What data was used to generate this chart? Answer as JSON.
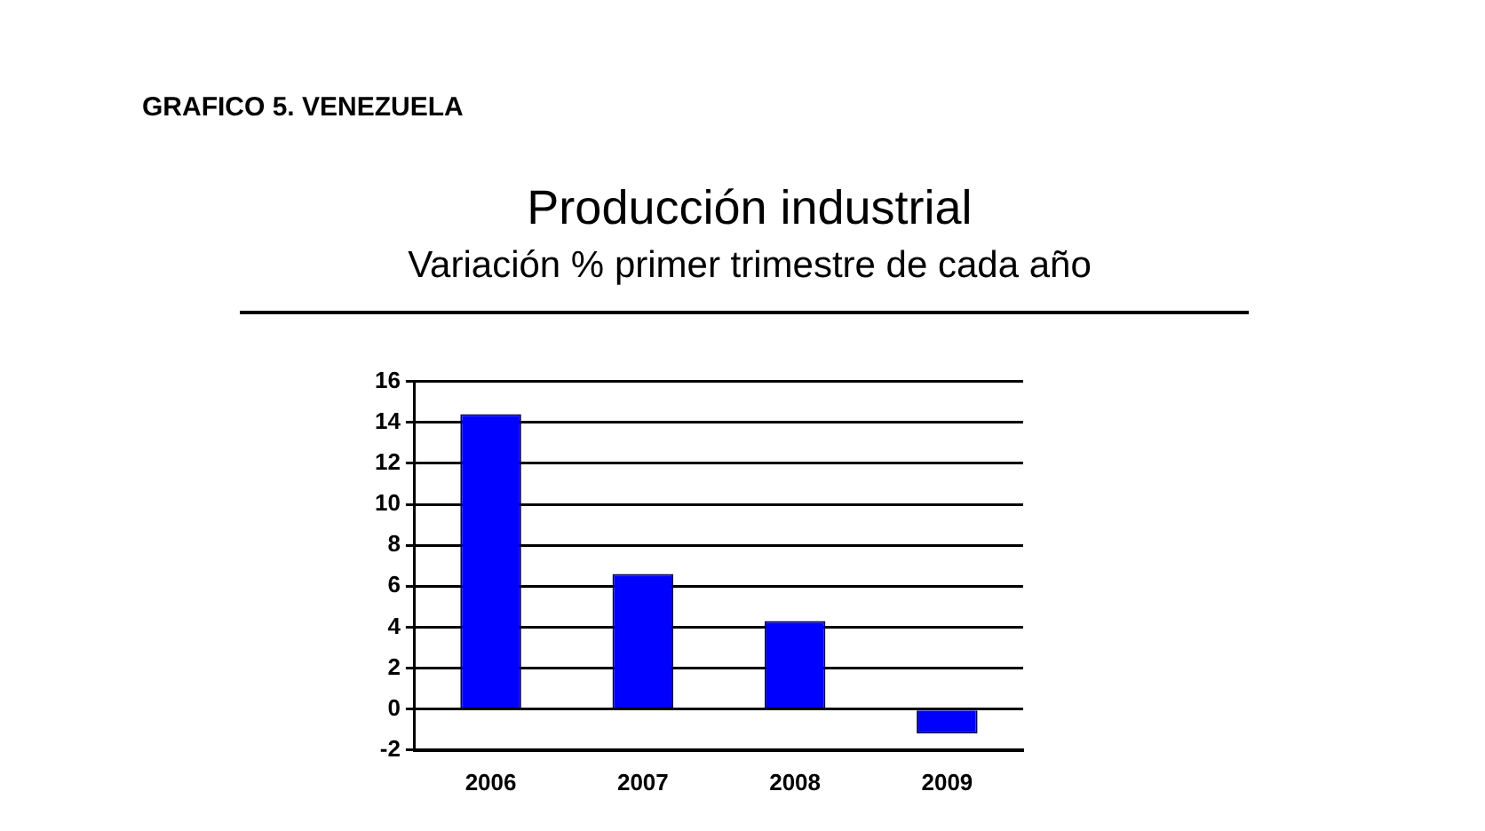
{
  "chart_data": {
    "type": "bar",
    "title": "Producción industrial",
    "subtitle": "Variación % primer trimestre de cada año",
    "annotations": [
      "GRAFICO 5. VENEZUELA"
    ],
    "categories": [
      "2006",
      "2007",
      "2008",
      "2009"
    ],
    "values": [
      14.4,
      6.6,
      4.3,
      -1.2
    ],
    "color": "#0000ff",
    "ylim": [
      -2,
      16
    ],
    "yticks": [
      -2,
      0,
      2,
      4,
      6,
      8,
      10,
      12,
      14,
      16
    ],
    "grid": "y",
    "legend": false
  }
}
